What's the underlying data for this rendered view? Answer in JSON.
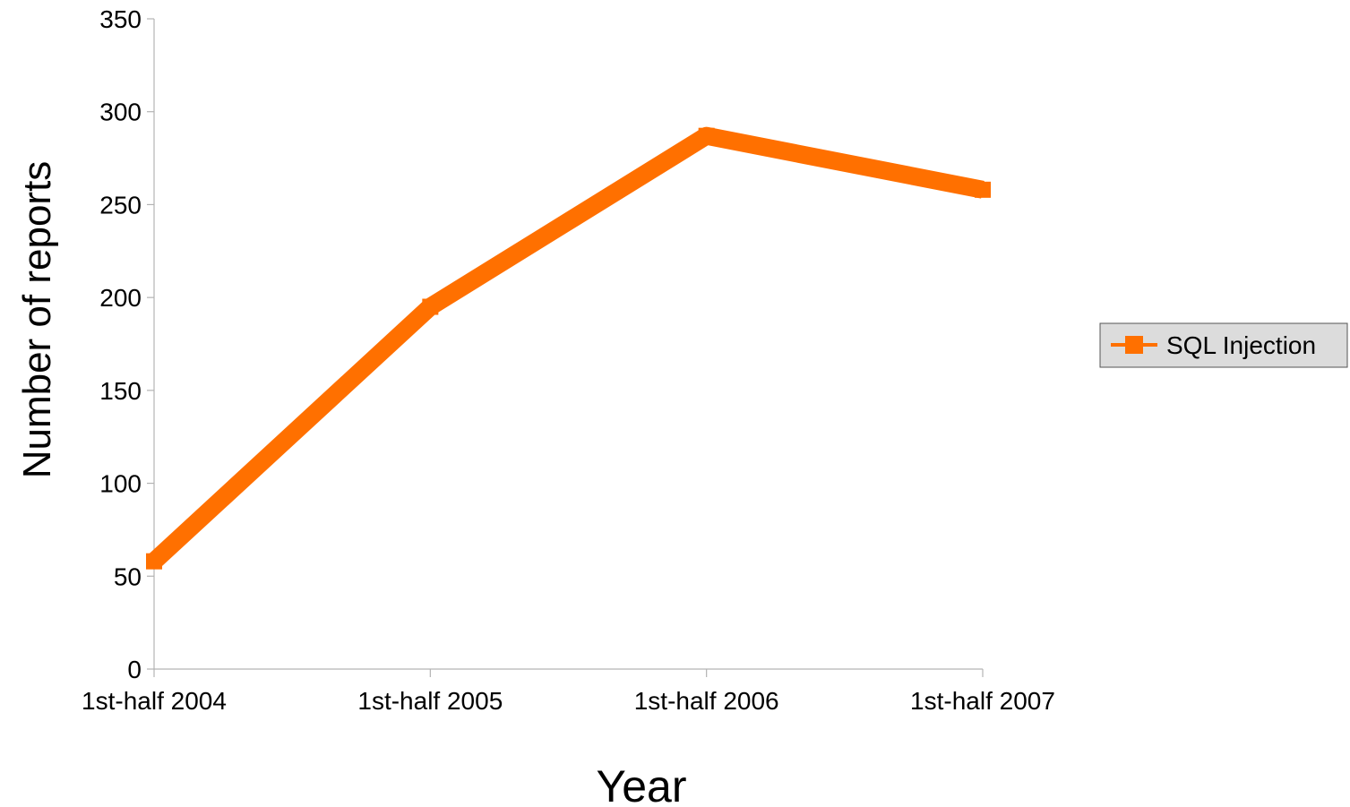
{
  "chart_data": {
    "type": "line",
    "title": "",
    "xlabel": "Year",
    "ylabel": "Number of reports",
    "categories": [
      "1st-half 2004",
      "1st-half 2005",
      "1st-half 2006",
      "1st-half 2007"
    ],
    "series": [
      {
        "name": "SQL Injection",
        "values": [
          58,
          195,
          287,
          258
        ],
        "color": "#ff7000"
      }
    ],
    "ylim": [
      0,
      350
    ],
    "yticks": [
      0,
      50,
      100,
      150,
      200,
      250,
      300,
      350
    ],
    "grid": false,
    "legend_position": "right"
  }
}
